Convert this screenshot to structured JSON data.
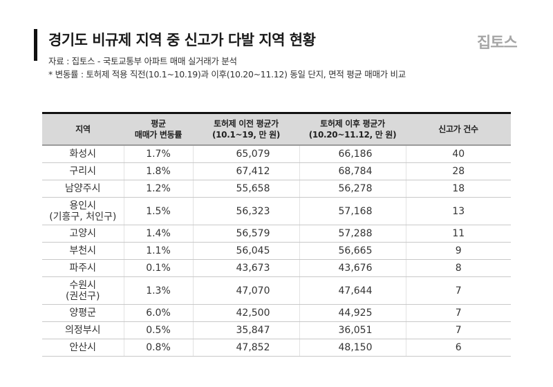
{
  "header": {
    "title": "경기도 비규제 지역 중 신고가 다발 지역 현황",
    "logo": "집토스",
    "source": "자료 : 집토스 - 국토교통부 아파트 매매 실거래가 분석",
    "note": "* 변동률 : 토허제 적용 직전(10.1~10.19)과 이후(10.20~11.12) 동일 단지, 면적 평균 매매가 비교"
  },
  "table": {
    "columns": [
      {
        "line1": "지역",
        "line2": ""
      },
      {
        "line1": "평균",
        "line2": "매매가 변동률"
      },
      {
        "line1": "토허제 이전 평균가",
        "line2": "(10.1~19, 만 원)"
      },
      {
        "line1": "토허제 이후 평균가",
        "line2": "(10.20~11.12, 만 원)"
      },
      {
        "line1": "신고가 건수",
        "line2": ""
      }
    ],
    "rows": [
      {
        "region": "화성시",
        "region_sub": "",
        "change": "1.7%",
        "before": "65,079",
        "after": "66,186",
        "count": "40"
      },
      {
        "region": "구리시",
        "region_sub": "",
        "change": "1.8%",
        "before": "67,412",
        "after": "68,784",
        "count": "28"
      },
      {
        "region": "남양주시",
        "region_sub": "",
        "change": "1.2%",
        "before": "55,658",
        "after": "56,278",
        "count": "18"
      },
      {
        "region": "용인시",
        "region_sub": "(기흥구, 처인구)",
        "change": "1.5%",
        "before": "56,323",
        "after": "57,168",
        "count": "13"
      },
      {
        "region": "고양시",
        "region_sub": "",
        "change": "1.4%",
        "before": "56,579",
        "after": "57,288",
        "count": "11"
      },
      {
        "region": "부천시",
        "region_sub": "",
        "change": "1.1%",
        "before": "56,045",
        "after": "56,665",
        "count": "9"
      },
      {
        "region": "파주시",
        "region_sub": "",
        "change": "0.1%",
        "before": "43,673",
        "after": "43,676",
        "count": "8"
      },
      {
        "region": "수원시",
        "region_sub": "(권선구)",
        "change": "1.3%",
        "before": "47,070",
        "after": "47,644",
        "count": "7"
      },
      {
        "region": "양평군",
        "region_sub": "",
        "change": "6.0%",
        "before": "42,500",
        "after": "44,925",
        "count": "7"
      },
      {
        "region": "의정부시",
        "region_sub": "",
        "change": "0.5%",
        "before": "35,847",
        "after": "36,051",
        "count": "7"
      },
      {
        "region": "안산시",
        "region_sub": "",
        "change": "0.8%",
        "before": "47,852",
        "after": "48,150",
        "count": "6"
      }
    ]
  },
  "colors": {
    "header_bg": "#d9d9d9",
    "logo": "#a6a6a6",
    "accent_bar": "#111111"
  }
}
